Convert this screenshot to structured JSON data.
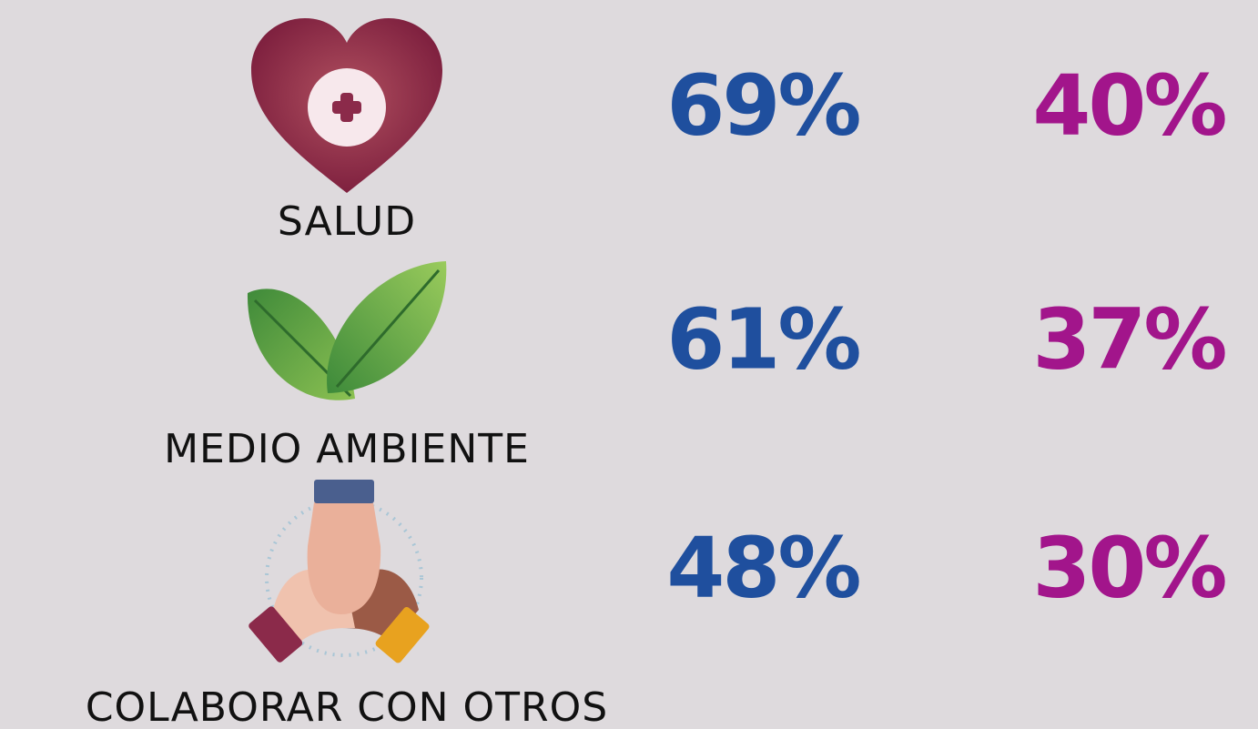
{
  "rows": [
    {
      "label": "SALUD",
      "values": [
        "69%",
        "40%"
      ]
    },
    {
      "label": "MEDIO AMBIENTE",
      "values": [
        "61%",
        "37%"
      ]
    },
    {
      "label": "COLABORAR CON OTROS",
      "values": [
        "48%",
        "30%"
      ]
    }
  ]
}
